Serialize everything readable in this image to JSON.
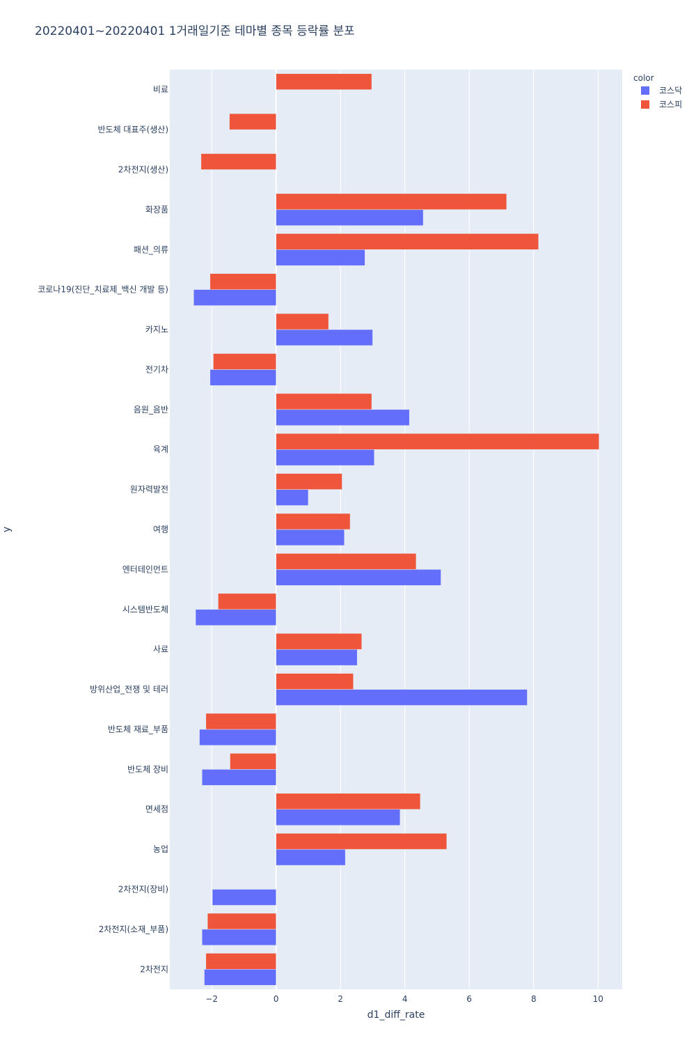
{
  "chart_data": {
    "type": "bar",
    "orientation": "horizontal",
    "title": "20220401~20220401 1거래일기준 테마별 종목 등락률 분포",
    "xlabel": "d1_diff_rate",
    "ylabel": "y",
    "xlim": [
      -3.3,
      10.75
    ],
    "xticks": [
      -2,
      0,
      2,
      4,
      6,
      8,
      10
    ],
    "xtick_labels": [
      "−2",
      "0",
      "2",
      "4",
      "6",
      "8",
      "10"
    ],
    "grid": true,
    "legend_title": "color",
    "legend_placement": "top-right",
    "categories": [
      "비료",
      "반도체 대표주(생산)",
      "2차전지(생산)",
      "화장품",
      "패션_의류",
      "코로나19(진단_치료제_백신 개발 등)",
      "카지노",
      "전기차",
      "음원_음반",
      "육계",
      "원자력발전",
      "여행",
      "엔터테인먼트",
      "시스템반도체",
      "사료",
      "방위산업_전쟁 및 테러",
      "반도체 재료_부품",
      "반도체 장비",
      "면세점",
      "농업",
      "2차전지(장비)",
      "2차전지(소재_부품)",
      "2차전지"
    ],
    "series": [
      {
        "name": "코스닥",
        "color": "#636efa",
        "values": [
          null,
          null,
          null,
          4.57,
          2.76,
          -2.56,
          3.0,
          -2.05,
          4.14,
          3.05,
          1.0,
          2.12,
          5.12,
          -2.5,
          2.52,
          7.8,
          -2.38,
          -2.3,
          3.85,
          2.15,
          -1.98,
          -2.3,
          -2.23
        ]
      },
      {
        "name": "코스피",
        "color": "#ef553b",
        "values": [
          2.97,
          -1.45,
          -2.33,
          7.16,
          8.15,
          -2.05,
          1.63,
          -1.95,
          2.97,
          10.03,
          2.05,
          2.3,
          4.35,
          -1.8,
          2.66,
          2.4,
          -2.18,
          -1.43,
          4.48,
          5.3,
          null,
          -2.13,
          -2.18
        ]
      }
    ]
  }
}
